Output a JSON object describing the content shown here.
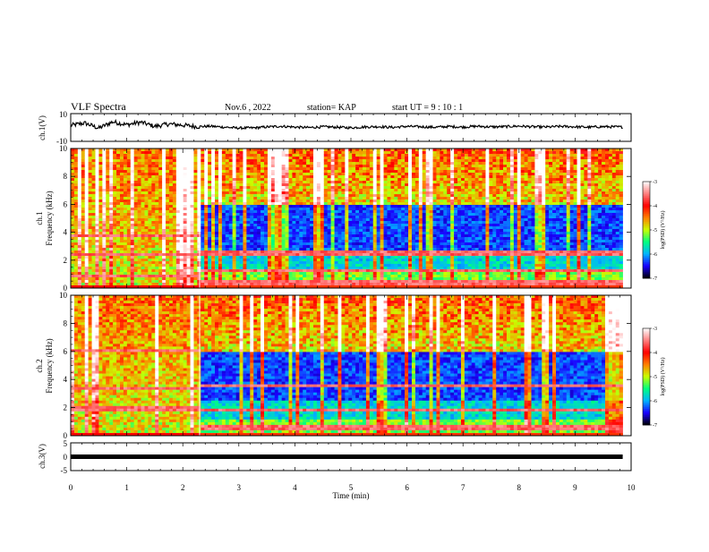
{
  "header": {
    "title": "VLF Spectra",
    "date": "Nov.6 , 2022",
    "station": "station= KAP",
    "start_ut": "start  UT =   9 : 10 : 1"
  },
  "chart_data": [
    {
      "name": "ch1-waveform",
      "type": "line",
      "ylabel": "ch.1(V)",
      "ylim": [
        -10,
        10
      ],
      "y_ticks": [
        "10",
        "-10"
      ],
      "xlim": [
        0,
        10
      ],
      "series_color": "#000000",
      "x": [
        0.0,
        0.25,
        0.5,
        0.75,
        1.0,
        1.25,
        1.5,
        1.75,
        2.0,
        2.25,
        2.5,
        2.75,
        3.0,
        3.25,
        3.5,
        3.75,
        4.0,
        4.25,
        4.5,
        4.75,
        5.0,
        5.25,
        5.5,
        5.75,
        6.0,
        6.25,
        6.5,
        6.75,
        7.0,
        7.25,
        7.5,
        7.75,
        8.0,
        8.25,
        8.5,
        8.75,
        9.0,
        9.25,
        9.5,
        9.75,
        9.85
      ],
      "values": [
        1.5,
        3.2,
        -0.5,
        4.1,
        2.0,
        3.8,
        0.8,
        2.5,
        1.7,
        0.6,
        0.9,
        0.2,
        -0.4,
        -0.3,
        0.4,
        0.9,
        0.3,
        -0.1,
        0.5,
        0.2,
        -0.2,
        0.4,
        0.6,
        0.1,
        0.8,
        0.5,
        0.2,
        0.7,
        0.3,
        0.9,
        0.4,
        0.6,
        1.0,
        0.5,
        0.3,
        0.8,
        0.5,
        0.2,
        0.6,
        0.4,
        0.3
      ]
    },
    {
      "name": "ch1-spectrogram",
      "type": "heatmap",
      "ylabel": "ch.1\nFrequency (kHz)",
      "xlim": [
        0,
        10
      ],
      "ylim": [
        0,
        10
      ],
      "y_ticks": [
        "0",
        "2",
        "4",
        "6",
        "8",
        "10"
      ],
      "colorbar": {
        "label": "log(PSD) (V²/Hz)",
        "range": [
          -7,
          -3
        ],
        "ticks": [
          "-3",
          "-4",
          "-5",
          "-6",
          "-7"
        ],
        "colors": [
          "#000000",
          "#1a00ff",
          "#00b4ff",
          "#00ff80",
          "#c8ff00",
          "#ff8000",
          "#ff0000",
          "#ff8080",
          "#ffffff"
        ]
      },
      "transition_min": 2.3,
      "line_freqs_before_khz": [
        0.8,
        2.4,
        3.7
      ],
      "line_freqs_after_khz": [
        0.4,
        1.2,
        2.5
      ]
    },
    {
      "name": "ch2-spectrogram",
      "type": "heatmap",
      "ylabel": "ch.2\nFrequency (kHz)",
      "xlim": [
        0,
        10
      ],
      "ylim": [
        0,
        10
      ],
      "y_ticks": [
        "0",
        "2",
        "4",
        "6",
        "8",
        "10"
      ],
      "colorbar": {
        "label": "log(PSD) (V²/Hz)",
        "range": [
          -7,
          -3
        ],
        "ticks": [
          "-3",
          "-4",
          "-5",
          "-6",
          "-7"
        ],
        "colors": [
          "#000000",
          "#1a00ff",
          "#00b4ff",
          "#00ff80",
          "#c8ff00",
          "#ff8000",
          "#ff0000",
          "#ff8080",
          "#ffffff"
        ]
      },
      "transition_min": 2.3,
      "line_freqs_before_khz": [
        1.9,
        3.3,
        6.1
      ],
      "line_freqs_after_khz": [
        0.6,
        1.8,
        3.5
      ]
    },
    {
      "name": "ch3-waveform",
      "type": "line",
      "ylabel": "ch.3(V)",
      "ylim": [
        -5,
        5
      ],
      "y_ticks": [
        "5",
        "0",
        "-5"
      ],
      "xlim": [
        0,
        10
      ],
      "xlabel": "Time  (min)",
      "x_ticks": [
        "0",
        "1",
        "2",
        "3",
        "4",
        "5",
        "6",
        "7",
        "8",
        "9",
        "10"
      ],
      "series_color": "#000000",
      "x": [
        0,
        9.85
      ],
      "values": [
        0.0,
        0.0
      ]
    }
  ]
}
